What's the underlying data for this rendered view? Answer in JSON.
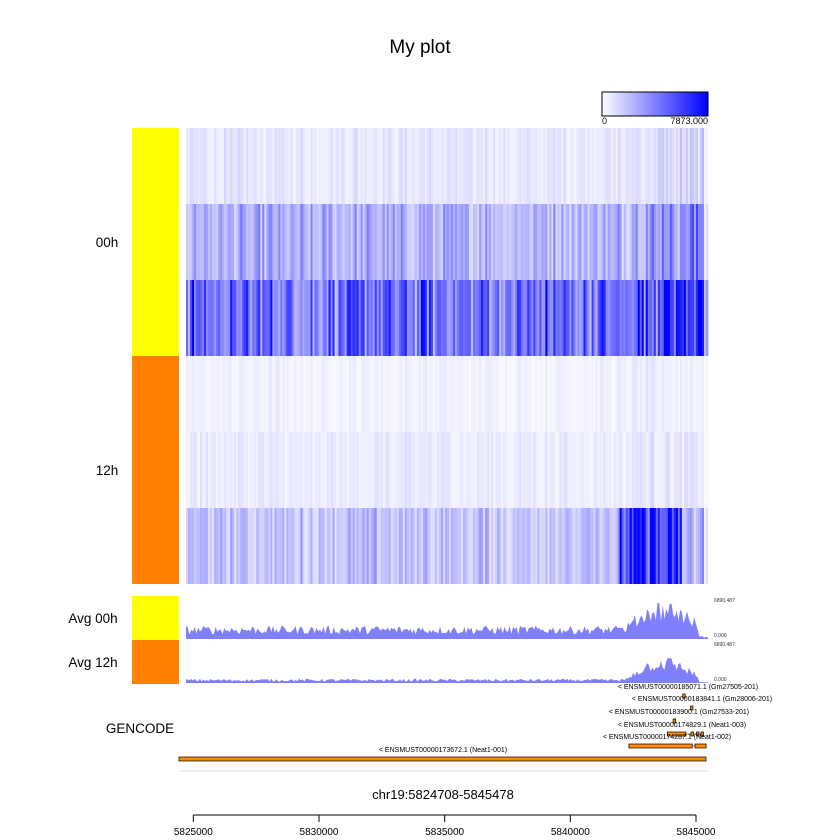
{
  "chart_data": {
    "type": "heatmap",
    "title": "My plot",
    "region": "chr19:5824708-5845478",
    "xlim": [
      5824708,
      5845478
    ],
    "x_ticks": [
      "5825000",
      "5830000",
      "5835000",
      "5840000",
      "5845000"
    ],
    "x_tick_values": [
      5825000,
      5830000,
      5835000,
      5840000,
      5845000
    ],
    "color_scale": {
      "min_label": "0",
      "max_label": "7873.000",
      "min_color": "#ffffff",
      "max_color": "#0000ff"
    },
    "groups": [
      {
        "name": "00h",
        "color": "#ffff00",
        "rows": 3,
        "row_intensity": [
          0.12,
          0.38,
          0.72
        ]
      },
      {
        "name": "12h",
        "color": "#ff8000",
        "rows": 3,
        "row_intensity": [
          0.07,
          0.1,
          0.3
        ]
      }
    ],
    "average_tracks": [
      {
        "name": "Avg 00h",
        "color": "#ffff00",
        "fill": "#8080ff",
        "max_label": "6890.487",
        "min_label": "0.000",
        "level": 0.32,
        "peak": 0.95
      },
      {
        "name": "Avg 12h",
        "color": "#ff8000",
        "fill": "#8080ff",
        "max_label": "6890.487",
        "min_label": "0.000",
        "level": 0.1,
        "peak": 0.65
      }
    ],
    "annotation": {
      "name": "GENCODE",
      "color": "#ff8c00",
      "transcripts": [
        {
          "label": "< ENSMUST00000185071.1 (Gm27505-201)",
          "start": 5844470,
          "end": 5844560
        },
        {
          "label": "< ENSMUST00000183841.1 (Gm28006-201)",
          "start": 5844780,
          "end": 5844870
        },
        {
          "label": "< ENSMUST00000183900.1 (Gm27533-201)",
          "start": 5844090,
          "end": 5844190
        },
        {
          "label": "< ENSMUST00000174829.1 (Neat1-003)",
          "start": 5843860,
          "end": 5845260
        },
        {
          "label": "< ENSMUST00000174287.1 (Neat1-002)",
          "start": 5842330,
          "end": 5845400
        },
        {
          "label": "< ENSMUST00000173672.1 (Neat1-001)",
          "start": 5824708,
          "end": 5845400
        }
      ]
    }
  }
}
